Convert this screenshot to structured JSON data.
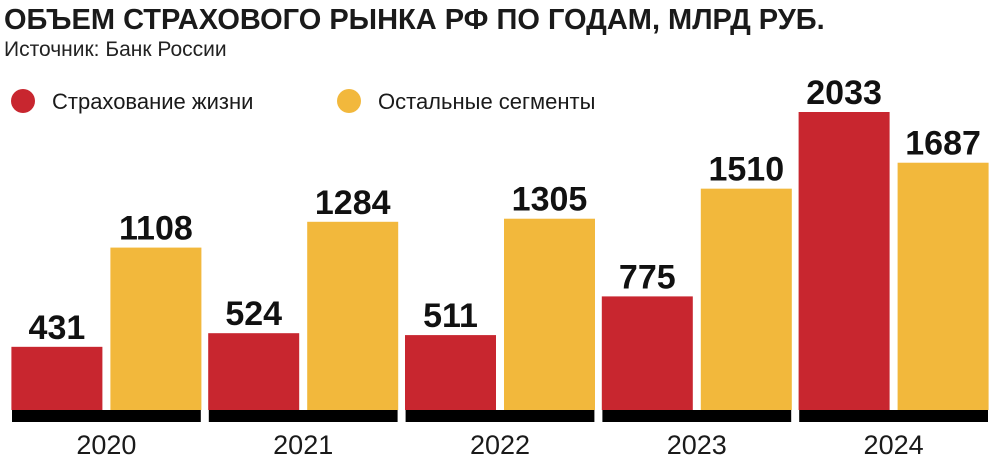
{
  "chart_data": {
    "type": "bar",
    "title": "ОБЪЕМ СТРАХОВОГО РЫНКА РФ ПО ГОДАМ, МЛРД РУБ.",
    "subtitle": "Источник: Банк России",
    "categories": [
      "2020",
      "2021",
      "2022",
      "2023",
      "2024"
    ],
    "series": [
      {
        "name": "Страхование жизни",
        "color": "#c8262f",
        "values": [
          431,
          524,
          511,
          775,
          2033
        ]
      },
      {
        "name": "Остальные сегменты",
        "color": "#f2b83c",
        "values": [
          1108,
          1284,
          1305,
          1510,
          1687
        ]
      }
    ],
    "ylim": [
      0,
      2033
    ],
    "grid": false,
    "legend": "top-left",
    "baseline_color": "#000000",
    "xlabel": "",
    "ylabel": ""
  }
}
